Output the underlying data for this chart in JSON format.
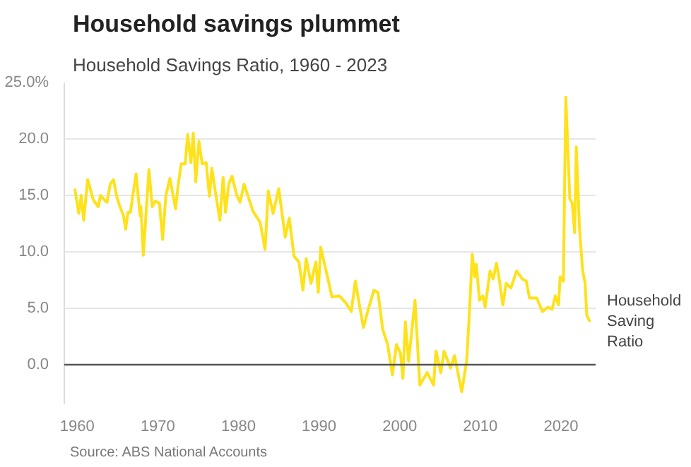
{
  "chart_data": {
    "type": "line",
    "title": "Household savings plummet",
    "subtitle": "Household Savings Ratio, 1960 - 2023",
    "annotations": [
      "Source: ABS National Accounts"
    ],
    "xlim": [
      1958.4,
      2024.3
    ],
    "xticks": [
      1960,
      1970,
      1980,
      1990,
      2000,
      2010,
      2020
    ],
    "ylim": [
      -3.5,
      25
    ],
    "yticks": [
      {
        "value": 0,
        "label": "0.0"
      },
      {
        "value": 5,
        "label": "5.0"
      },
      {
        "value": 10,
        "label": "10.0"
      },
      {
        "value": 15,
        "label": "15.0"
      },
      {
        "value": 20,
        "label": "20.0"
      },
      {
        "value": 25,
        "label": "25.0%"
      }
    ],
    "grid": "y",
    "marker": "none",
    "line_style": "solid",
    "ref_lines": [
      {
        "axis": "y",
        "value": 0,
        "color": "#555555"
      }
    ],
    "series": [
      {
        "name": "Household Saving Ratio",
        "color": "#fde21c",
        "x": [
          1959.7,
          1960.2,
          1960.5,
          1960.8,
          1961.3,
          1962.0,
          1962.6,
          1962.9,
          1963.5,
          1963.7,
          1964.1,
          1964.5,
          1964.9,
          1965.3,
          1965.75,
          1966.0,
          1966.3,
          1966.6,
          1966.9,
          1967.3,
          1967.8,
          1967.9,
          1968.2,
          1968.9,
          1969.3,
          1969.7,
          1970.2,
          1970.6,
          1971.0,
          1971.5,
          1972.2,
          1972.5,
          1972.9,
          1973.4,
          1973.7,
          1974.1,
          1974.4,
          1974.7,
          1975.1,
          1975.5,
          1976.0,
          1976.4,
          1976.7,
          1977.1,
          1977.7,
          1978.1,
          1978.4,
          1978.8,
          1979.2,
          1979.8,
          1980.2,
          1980.7,
          1981.8,
          1982.7,
          1983.3,
          1983.7,
          1984.3,
          1985.0,
          1985.8,
          1986.3,
          1986.9,
          1987.5,
          1988.0,
          1988.4,
          1989.0,
          1989.6,
          1989.9,
          1990.2,
          1991.1,
          1991.6,
          1992.5,
          1993.3,
          1994.0,
          1994.5,
          1995.1,
          1995.5,
          1996.1,
          1996.8,
          1997.3,
          1997.9,
          1998.5,
          1999.1,
          1999.6,
          2000.1,
          2000.4,
          2000.7,
          2001.1,
          2001.9,
          2002.5,
          2003.4,
          2004.2,
          2004.5,
          2005.1,
          2005.5,
          2006.3,
          2006.8,
          2007.7,
          2008.3,
          2008.6,
          2009.0,
          2009.3,
          2009.5,
          2009.9,
          2010.3,
          2010.6,
          2011.2,
          2011.6,
          2012.0,
          2012.3,
          2012.8,
          2013.2,
          2013.8,
          2014.5,
          2015.2,
          2015.7,
          2016.1,
          2017.0,
          2017.7,
          2018.4,
          2018.9,
          2019.3,
          2019.7,
          2019.9,
          2020.3,
          2020.6,
          2021.1,
          2021.4,
          2021.7,
          2021.9,
          2022.3,
          2022.7,
          2023.0,
          2023.2,
          2023.6
        ],
        "values": [
          15.6,
          13.4,
          15.0,
          12.8,
          16.4,
          14.6,
          14.0,
          15.0,
          14.5,
          14.4,
          16.0,
          16.4,
          14.9,
          14.0,
          13.2,
          12.0,
          13.5,
          13.5,
          15.0,
          16.9,
          13.2,
          14.0,
          9.7,
          17.3,
          14.0,
          14.5,
          14.3,
          11.1,
          15.0,
          16.5,
          13.8,
          15.8,
          17.8,
          17.8,
          20.4,
          17.9,
          20.5,
          16.2,
          19.8,
          17.8,
          17.9,
          14.9,
          17.4,
          15.5,
          12.8,
          16.6,
          13.5,
          16.0,
          16.7,
          15.0,
          14.4,
          16.0,
          13.6,
          12.6,
          10.2,
          15.4,
          13.4,
          15.6,
          11.3,
          13.0,
          9.6,
          9.1,
          6.6,
          9.4,
          7.2,
          9.1,
          6.4,
          10.4,
          7.6,
          6.0,
          6.1,
          5.5,
          4.7,
          7.4,
          4.9,
          3.3,
          4.9,
          6.6,
          6.4,
          3.1,
          1.8,
          -0.9,
          1.8,
          1.0,
          -1.2,
          3.8,
          0.3,
          5.7,
          -1.8,
          -0.7,
          -1.8,
          1.2,
          -0.7,
          1.2,
          -0.3,
          0.8,
          -2.4,
          0.3,
          4.0,
          9.8,
          7.8,
          8.9,
          5.7,
          6.1,
          5.1,
          8.3,
          7.6,
          9.0,
          7.8,
          5.3,
          7.2,
          6.8,
          8.3,
          7.6,
          7.4,
          5.9,
          5.9,
          4.7,
          5.1,
          4.9,
          6.1,
          5.3,
          7.8,
          7.4,
          23.7,
          14.7,
          14.3,
          11.7,
          19.3,
          12.1,
          8.3,
          7.2,
          4.4,
          3.8
        ]
      }
    ]
  }
}
